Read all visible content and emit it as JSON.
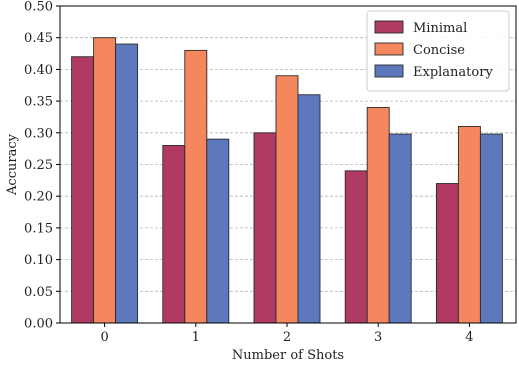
{
  "chart_data": {
    "type": "bar",
    "categories": [
      "0",
      "1",
      "2",
      "3",
      "4"
    ],
    "series": [
      {
        "name": "Minimal",
        "color": "#b03a64",
        "values": [
          0.42,
          0.28,
          0.3,
          0.24,
          0.22
        ]
      },
      {
        "name": "Concise",
        "color": "#f4875e",
        "values": [
          0.45,
          0.43,
          0.39,
          0.34,
          0.31
        ]
      },
      {
        "name": "Explanatory",
        "color": "#5d78bd",
        "values": [
          0.44,
          0.29,
          0.36,
          0.298,
          0.298
        ]
      }
    ],
    "xlabel": "Number of Shots",
    "ylabel": "Accuracy",
    "ylim": [
      0,
      0.5
    ],
    "yticks": [
      "0.00",
      "0.05",
      "0.10",
      "0.15",
      "0.20",
      "0.25",
      "0.30",
      "0.35",
      "0.40",
      "0.45",
      "0.50"
    ],
    "grid": "horizontal dashed",
    "legend_position": "top-right"
  }
}
